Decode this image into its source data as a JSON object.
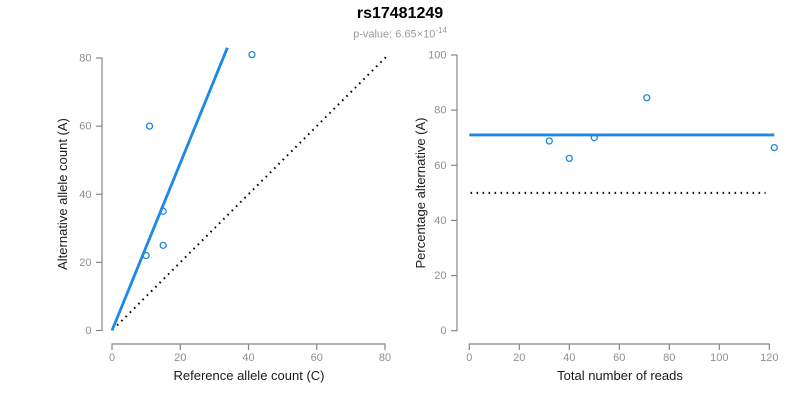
{
  "header": {
    "title": "rs17481249",
    "pvalue_prefix": "p-value: 6.65×10",
    "pvalue_exponent": "-14"
  },
  "colors": {
    "accent_blue": "#1E88E5",
    "dotted_black": "#000000",
    "axis_gray": "#878787",
    "tick_label_gray": "#8f8f8f"
  },
  "chart_data": [
    {
      "type": "scatter",
      "name": "allele-counts-plot",
      "xlabel": "Reference allele count (C)",
      "ylabel": "Alternative allele count (A)",
      "xlim": [
        0,
        80
      ],
      "ylim": [
        0,
        80
      ],
      "xticks": [
        0,
        20,
        40,
        60,
        80
      ],
      "yticks": [
        0,
        20,
        40,
        60,
        80
      ],
      "marker": "open-circle",
      "grid": false,
      "legend": null,
      "points": [
        [
          10,
          22
        ],
        [
          11,
          60
        ],
        [
          15,
          25
        ],
        [
          15,
          35
        ],
        [
          41,
          81
        ]
      ],
      "lines": [
        {
          "name": "fit-line",
          "color": "blue",
          "style": "solid",
          "x1": 0,
          "y1": 0,
          "x2": 33.8,
          "y2": 83
        },
        {
          "name": "identity-line",
          "color": "black",
          "style": "dotted",
          "x1": 1.5,
          "y1": 1.5,
          "x2": 81,
          "y2": 81
        }
      ]
    },
    {
      "type": "scatter",
      "name": "percentage-alternative-plot",
      "xlabel": "Total number of reads",
      "ylabel": "Percentage alternative (A)",
      "xlim": [
        0,
        120
      ],
      "ylim": [
        0,
        100
      ],
      "xticks": [
        0,
        20,
        40,
        60,
        80,
        100,
        120
      ],
      "yticks": [
        0,
        20,
        40,
        60,
        80,
        100
      ],
      "marker": "open-circle",
      "grid": false,
      "legend": null,
      "points": [
        [
          32,
          68.8
        ],
        [
          40,
          62.5
        ],
        [
          50,
          70
        ],
        [
          71,
          84.5
        ],
        [
          122,
          66.4
        ]
      ],
      "lines": [
        {
          "name": "mean-line",
          "color": "blue",
          "style": "solid",
          "x1": 0,
          "y1": 71,
          "x2": 122,
          "y2": 71
        },
        {
          "name": "fifty-percent-line",
          "color": "black",
          "style": "dotted",
          "x1": 0.5,
          "y1": 50,
          "x2": 118.5,
          "y2": 50
        }
      ]
    }
  ]
}
